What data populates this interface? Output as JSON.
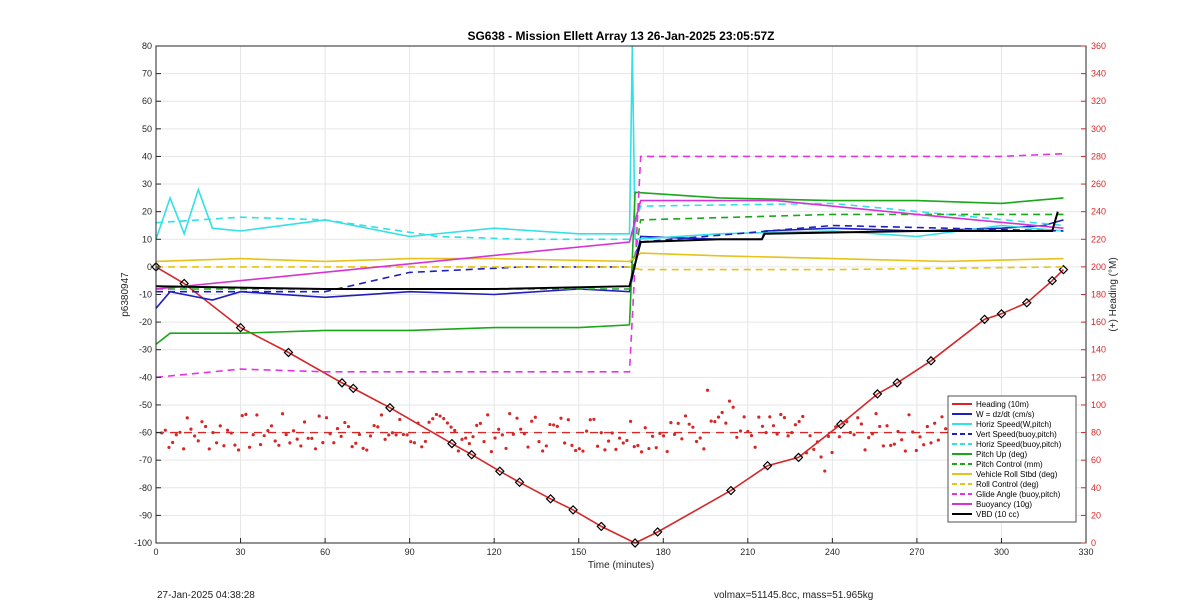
{
  "chart_data": {
    "type": "line",
    "title": "SG638 - Mission Ellett Array 13 26-Jan-2025 23:05:57Z",
    "xlabel": "Time (minutes)",
    "ylabel_left": "p6380947",
    "ylabel_right": "(+) Heading (°M)",
    "xlim": [
      0,
      330
    ],
    "ylim_left": [
      -100,
      80
    ],
    "ylim_right": [
      0,
      360
    ],
    "xticks": [
      0,
      30,
      60,
      90,
      120,
      150,
      180,
      210,
      240,
      270,
      300,
      330
    ],
    "yticks_left": [
      80,
      70,
      60,
      50,
      40,
      30,
      20,
      10,
      0,
      -10,
      -20,
      -30,
      -40,
      -50,
      -60,
      -70,
      -80,
      -90,
      -100
    ],
    "yticks_right": [
      360,
      340,
      320,
      300,
      280,
      260,
      240,
      220,
      200,
      180,
      160,
      140,
      120,
      100,
      80,
      60,
      40,
      20,
      0
    ],
    "grid": true,
    "legend_position": "bottom-right",
    "colors": {
      "depth": "#d62728",
      "w": "#1f1fbf",
      "horiz_speed": "#33e0e6",
      "pitch": "#1aa81a",
      "roll": "#e6c21a",
      "glide": "#e633e6",
      "buoyancy": "#d633d6",
      "vbd": "#000000"
    },
    "series": [
      {
        "name": "Heading (10m)",
        "key": "depth",
        "style": "solid-diamond",
        "points": [
          [
            0,
            0
          ],
          [
            10,
            -6
          ],
          [
            30,
            -22
          ],
          [
            47,
            -31
          ],
          [
            66,
            -42
          ],
          [
            70,
            -44
          ],
          [
            83,
            -51
          ],
          [
            105,
            -64
          ],
          [
            112,
            -68
          ],
          [
            122,
            -74
          ],
          [
            129,
            -78
          ],
          [
            140,
            -84
          ],
          [
            148,
            -88
          ],
          [
            158,
            -94
          ],
          [
            170,
            -100
          ],
          [
            178,
            -96
          ],
          [
            204,
            -81
          ],
          [
            217,
            -72
          ],
          [
            228,
            -69
          ],
          [
            243,
            -57
          ],
          [
            256,
            -46
          ],
          [
            263,
            -42
          ],
          [
            275,
            -34
          ],
          [
            294,
            -19
          ],
          [
            300,
            -17
          ],
          [
            309,
            -13
          ],
          [
            318,
            -5
          ],
          [
            322,
            -1
          ]
        ]
      },
      {
        "name": "W = dz/dt (cm/s)",
        "key": "w",
        "style": "solid",
        "points": [
          [
            0,
            -15
          ],
          [
            5,
            -9
          ],
          [
            10,
            -10
          ],
          [
            20,
            -12
          ],
          [
            30,
            -9
          ],
          [
            60,
            -11
          ],
          [
            90,
            -9
          ],
          [
            120,
            -10
          ],
          [
            150,
            -8
          ],
          [
            168,
            -9
          ],
          [
            172,
            11
          ],
          [
            200,
            10
          ],
          [
            215,
            10
          ],
          [
            216,
            13
          ],
          [
            240,
            14
          ],
          [
            270,
            13
          ],
          [
            300,
            14
          ],
          [
            315,
            15
          ],
          [
            322,
            17
          ]
        ]
      },
      {
        "name": "Horiz Speed(W,pitch)",
        "key": "horiz_speed",
        "style": "solid",
        "points": [
          [
            0,
            10
          ],
          [
            5,
            25
          ],
          [
            10,
            12
          ],
          [
            15,
            28
          ],
          [
            20,
            14
          ],
          [
            30,
            13
          ],
          [
            60,
            17
          ],
          [
            90,
            11
          ],
          [
            120,
            14
          ],
          [
            150,
            12
          ],
          [
            168,
            12
          ],
          [
            169,
            80
          ],
          [
            170,
            10
          ],
          [
            200,
            12
          ],
          [
            240,
            13
          ],
          [
            270,
            11
          ],
          [
            300,
            15
          ],
          [
            322,
            13
          ]
        ]
      },
      {
        "name": "Vert Speed(buoy,pitch)",
        "key": "w",
        "style": "dash",
        "points": [
          [
            0,
            -9
          ],
          [
            60,
            -9
          ],
          [
            90,
            -2
          ],
          [
            130,
            0
          ],
          [
            168,
            0
          ],
          [
            172,
            9
          ],
          [
            240,
            15
          ],
          [
            322,
            13
          ]
        ]
      },
      {
        "name": "Horiz Speed(buoy,pitch)",
        "key": "horiz_speed",
        "style": "dash",
        "points": [
          [
            0,
            16
          ],
          [
            30,
            18
          ],
          [
            60,
            17
          ],
          [
            100,
            11
          ],
          [
            130,
            10
          ],
          [
            168,
            10
          ],
          [
            172,
            22
          ],
          [
            240,
            23
          ],
          [
            322,
            15
          ]
        ]
      },
      {
        "name": "Pitch Up (deg)",
        "key": "pitch",
        "style": "solid",
        "points": [
          [
            0,
            -28
          ],
          [
            5,
            -24
          ],
          [
            30,
            -24
          ],
          [
            60,
            -23
          ],
          [
            90,
            -23
          ],
          [
            120,
            -22
          ],
          [
            150,
            -22
          ],
          [
            168,
            -21
          ],
          [
            170,
            27
          ],
          [
            200,
            25
          ],
          [
            240,
            24
          ],
          [
            270,
            24
          ],
          [
            300,
            23
          ],
          [
            322,
            25
          ]
        ]
      },
      {
        "name": "Pitch Control (mm)",
        "key": "pitch",
        "style": "dash",
        "points": [
          [
            0,
            -8
          ],
          [
            30,
            -8
          ],
          [
            90,
            -8
          ],
          [
            168,
            -8
          ],
          [
            172,
            17
          ],
          [
            240,
            19
          ],
          [
            322,
            19
          ]
        ]
      },
      {
        "name": "Vehicle Roll Stbd (deg)",
        "key": "roll",
        "style": "solid",
        "points": [
          [
            0,
            2
          ],
          [
            30,
            3
          ],
          [
            60,
            2
          ],
          [
            90,
            3
          ],
          [
            120,
            3
          ],
          [
            168,
            2
          ],
          [
            172,
            5
          ],
          [
            200,
            4
          ],
          [
            240,
            3
          ],
          [
            280,
            2
          ],
          [
            322,
            3
          ]
        ]
      },
      {
        "name": "Roll Control (deg)",
        "key": "roll",
        "style": "dash",
        "points": [
          [
            0,
            0
          ],
          [
            30,
            0
          ],
          [
            60,
            0
          ],
          [
            120,
            0
          ],
          [
            168,
            0
          ],
          [
            172,
            -1
          ],
          [
            240,
            -1
          ],
          [
            322,
            0
          ]
        ]
      },
      {
        "name": "Glide Angle (buoy,pitch)",
        "key": "glide",
        "style": "dash",
        "points": [
          [
            0,
            -40
          ],
          [
            30,
            -37
          ],
          [
            60,
            -38
          ],
          [
            120,
            -38
          ],
          [
            168,
            -38
          ],
          [
            172,
            40
          ],
          [
            240,
            40
          ],
          [
            300,
            40
          ],
          [
            322,
            41
          ]
        ]
      },
      {
        "name": "Buoyancy (10g)",
        "key": "buoyancy",
        "style": "solid",
        "points": [
          [
            0,
            -8
          ],
          [
            168,
            9
          ],
          [
            172,
            24
          ],
          [
            220,
            24
          ],
          [
            270,
            19
          ],
          [
            322,
            14
          ]
        ]
      },
      {
        "name": "VBD (10 cc)",
        "key": "vbd",
        "style": "solid",
        "points": [
          [
            0,
            -7
          ],
          [
            60,
            -8
          ],
          [
            120,
            -8
          ],
          [
            168,
            -7
          ],
          [
            172,
            9
          ],
          [
            200,
            10
          ],
          [
            215,
            10
          ],
          [
            216,
            12
          ],
          [
            270,
            13
          ],
          [
            318,
            13
          ],
          [
            320,
            20
          ]
        ]
      }
    ],
    "heading_scatter_summary": {
      "mean_heading_deg": 80,
      "note_visible_dashed_line_y": -60
    }
  },
  "footer": {
    "timestamp": "27-Jan-2025 04:38:28",
    "stats": "volmax=51145.8cc, mass=51.965kg"
  }
}
